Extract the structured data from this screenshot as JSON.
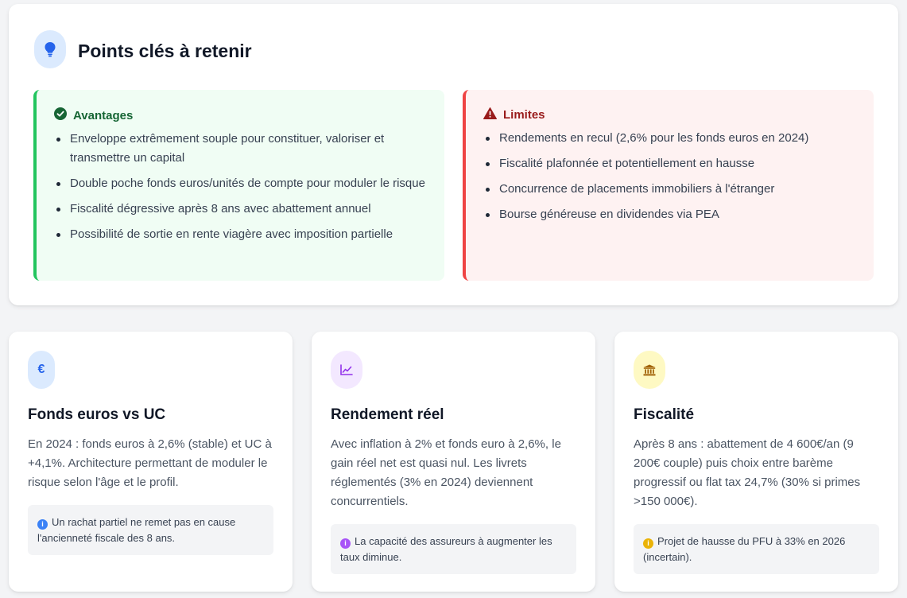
{
  "key_points": {
    "title": "Points clés à retenir",
    "icon": "lightbulb-icon",
    "advantages": {
      "title": "Avantages",
      "icon": "check-circle-icon",
      "items": [
        "Enveloppe extrêmement souple pour constituer, valoriser et transmettre un capital",
        "Double poche fonds euros/unités de compte pour moduler le risque",
        "Fiscalité dégressive après 8 ans avec abattement annuel",
        "Possibilité de sortie en rente viagère avec imposition partielle"
      ]
    },
    "limits": {
      "title": "Limites",
      "icon": "warning-triangle-icon",
      "items": [
        "Rendements en recul (2,6% pour les fonds euros en 2024)",
        "Fiscalité plafonnée et potentiellement en hausse",
        "Concurrence de placements immobiliers à l'étranger",
        "Bourse généreuse en dividendes via PEA"
      ]
    }
  },
  "cards": [
    {
      "icon": "euro-icon",
      "icon_glyph": "€",
      "icon_color": "#2563eb",
      "icon_bg": "#dbeafe",
      "title": "Fonds euros vs UC",
      "body": "En 2024 : fonds euros à 2,6% (stable) et UC à +4,1%. Architecture permettant de moduler le risque selon l'âge et le profil.",
      "note_icon": "info-icon",
      "note_color": "#3b82f6",
      "note": "Un rachat partiel ne remet pas en cause l'ancienneté fiscale des 8 ans."
    },
    {
      "icon": "line-chart-icon",
      "icon_color": "#9333ea",
      "icon_bg": "#f3e8ff",
      "title": "Rendement réel",
      "body": "Avec inflation à 2% et fonds euro à 2,6%, le gain réel net est quasi nul. Les livrets réglementés (3% en 2024) deviennent concurrentiels.",
      "note_icon": "info-icon",
      "note_color": "#a855f7",
      "note": "La capacité des assureurs à augmenter les taux diminue."
    },
    {
      "icon": "bank-icon",
      "icon_color": "#a16207",
      "icon_bg": "#fef9c3",
      "title": "Fiscalité",
      "body": "Après 8 ans : abattement de 4 600€/an (9 200€ couple) puis choix entre barème progressif ou flat tax 24,7% (30% si primes >150 000€).",
      "note_icon": "info-icon",
      "note_color": "#eab308",
      "note": "Projet de hausse du PFU à 33% en 2026 (incertain)."
    }
  ]
}
